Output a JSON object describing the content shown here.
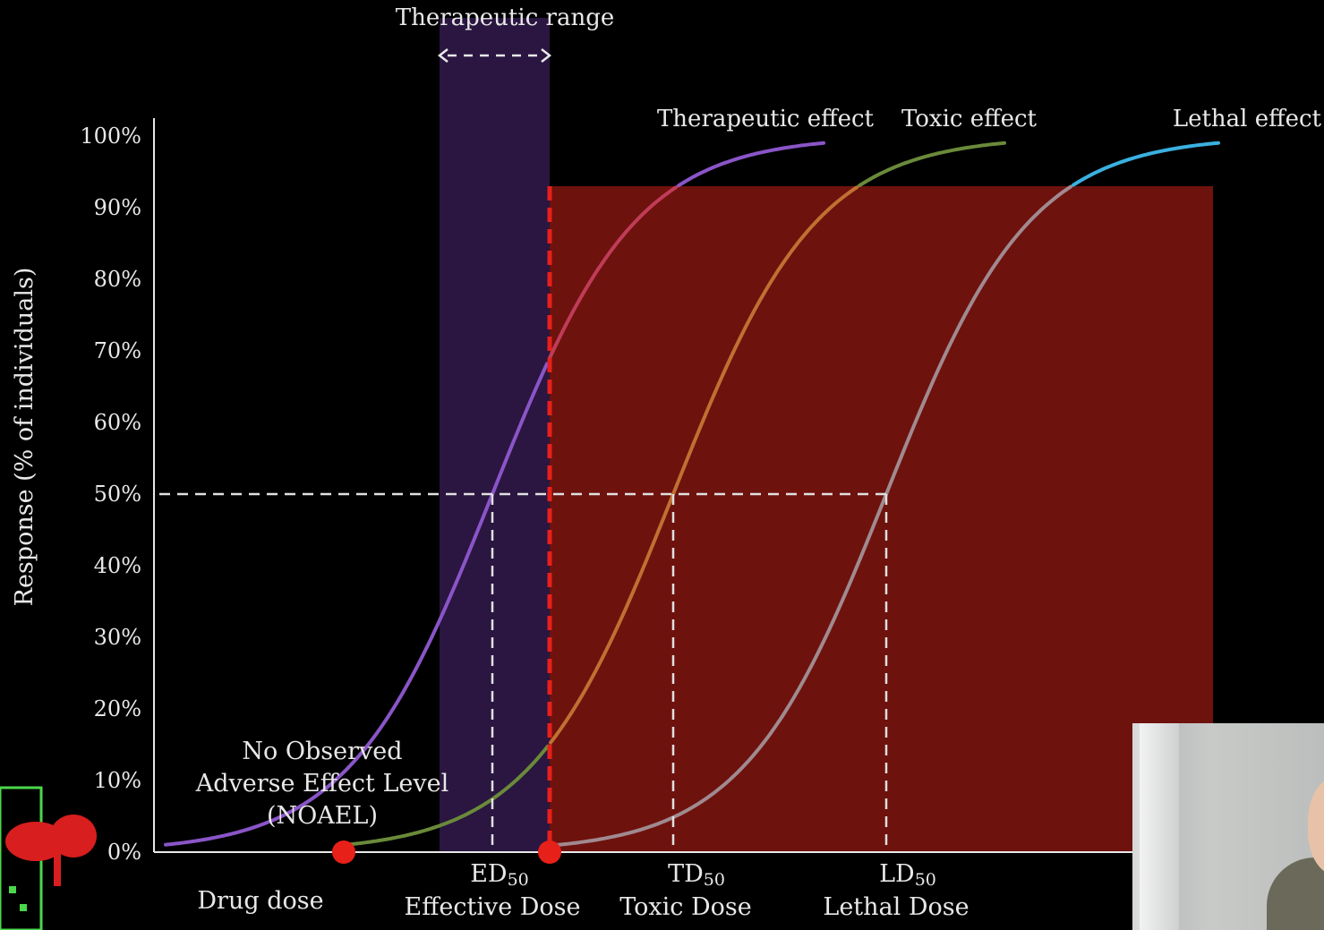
{
  "chart_data": {
    "type": "line",
    "title": "",
    "xlabel": "Drug dose",
    "ylabel": "Response (% of individuals)",
    "ylim": [
      0,
      100
    ],
    "yticks": [
      "100%",
      "90%",
      "80%",
      "70%",
      "60%",
      "50%",
      "40%",
      "30%",
      "20%",
      "10%",
      "0%"
    ],
    "series": [
      {
        "name": "Therapeutic effect",
        "color": "#8a55c8",
        "midpoint_label": "ED50"
      },
      {
        "name": "Toxic effect",
        "color": "#6a8a3a",
        "midpoint_label": "TD50"
      },
      {
        "name": "Lethal effect",
        "color": "#3ab0e0",
        "midpoint_label": "LD50"
      }
    ],
    "reference_line_y": 50,
    "doses": [
      {
        "name": "ED",
        "sub": "50",
        "label": "Effective Dose"
      },
      {
        "name": "TD",
        "sub": "50",
        "label": "Toxic Dose"
      },
      {
        "name": "LD",
        "sub": "50",
        "label": "Lethal Dose"
      }
    ],
    "therapeutic_range_label": "Therapeutic range",
    "noael_label": [
      "No Observed",
      "Adverse Effect Level",
      "(NOAEL)"
    ],
    "colors": {
      "therapeutic_band": "#2a1640",
      "toxic_zone": "#6e120e",
      "marker": "#e8201a"
    }
  },
  "overlay": {
    "webcam": "webcam-feed",
    "logo": "channel-logo"
  }
}
